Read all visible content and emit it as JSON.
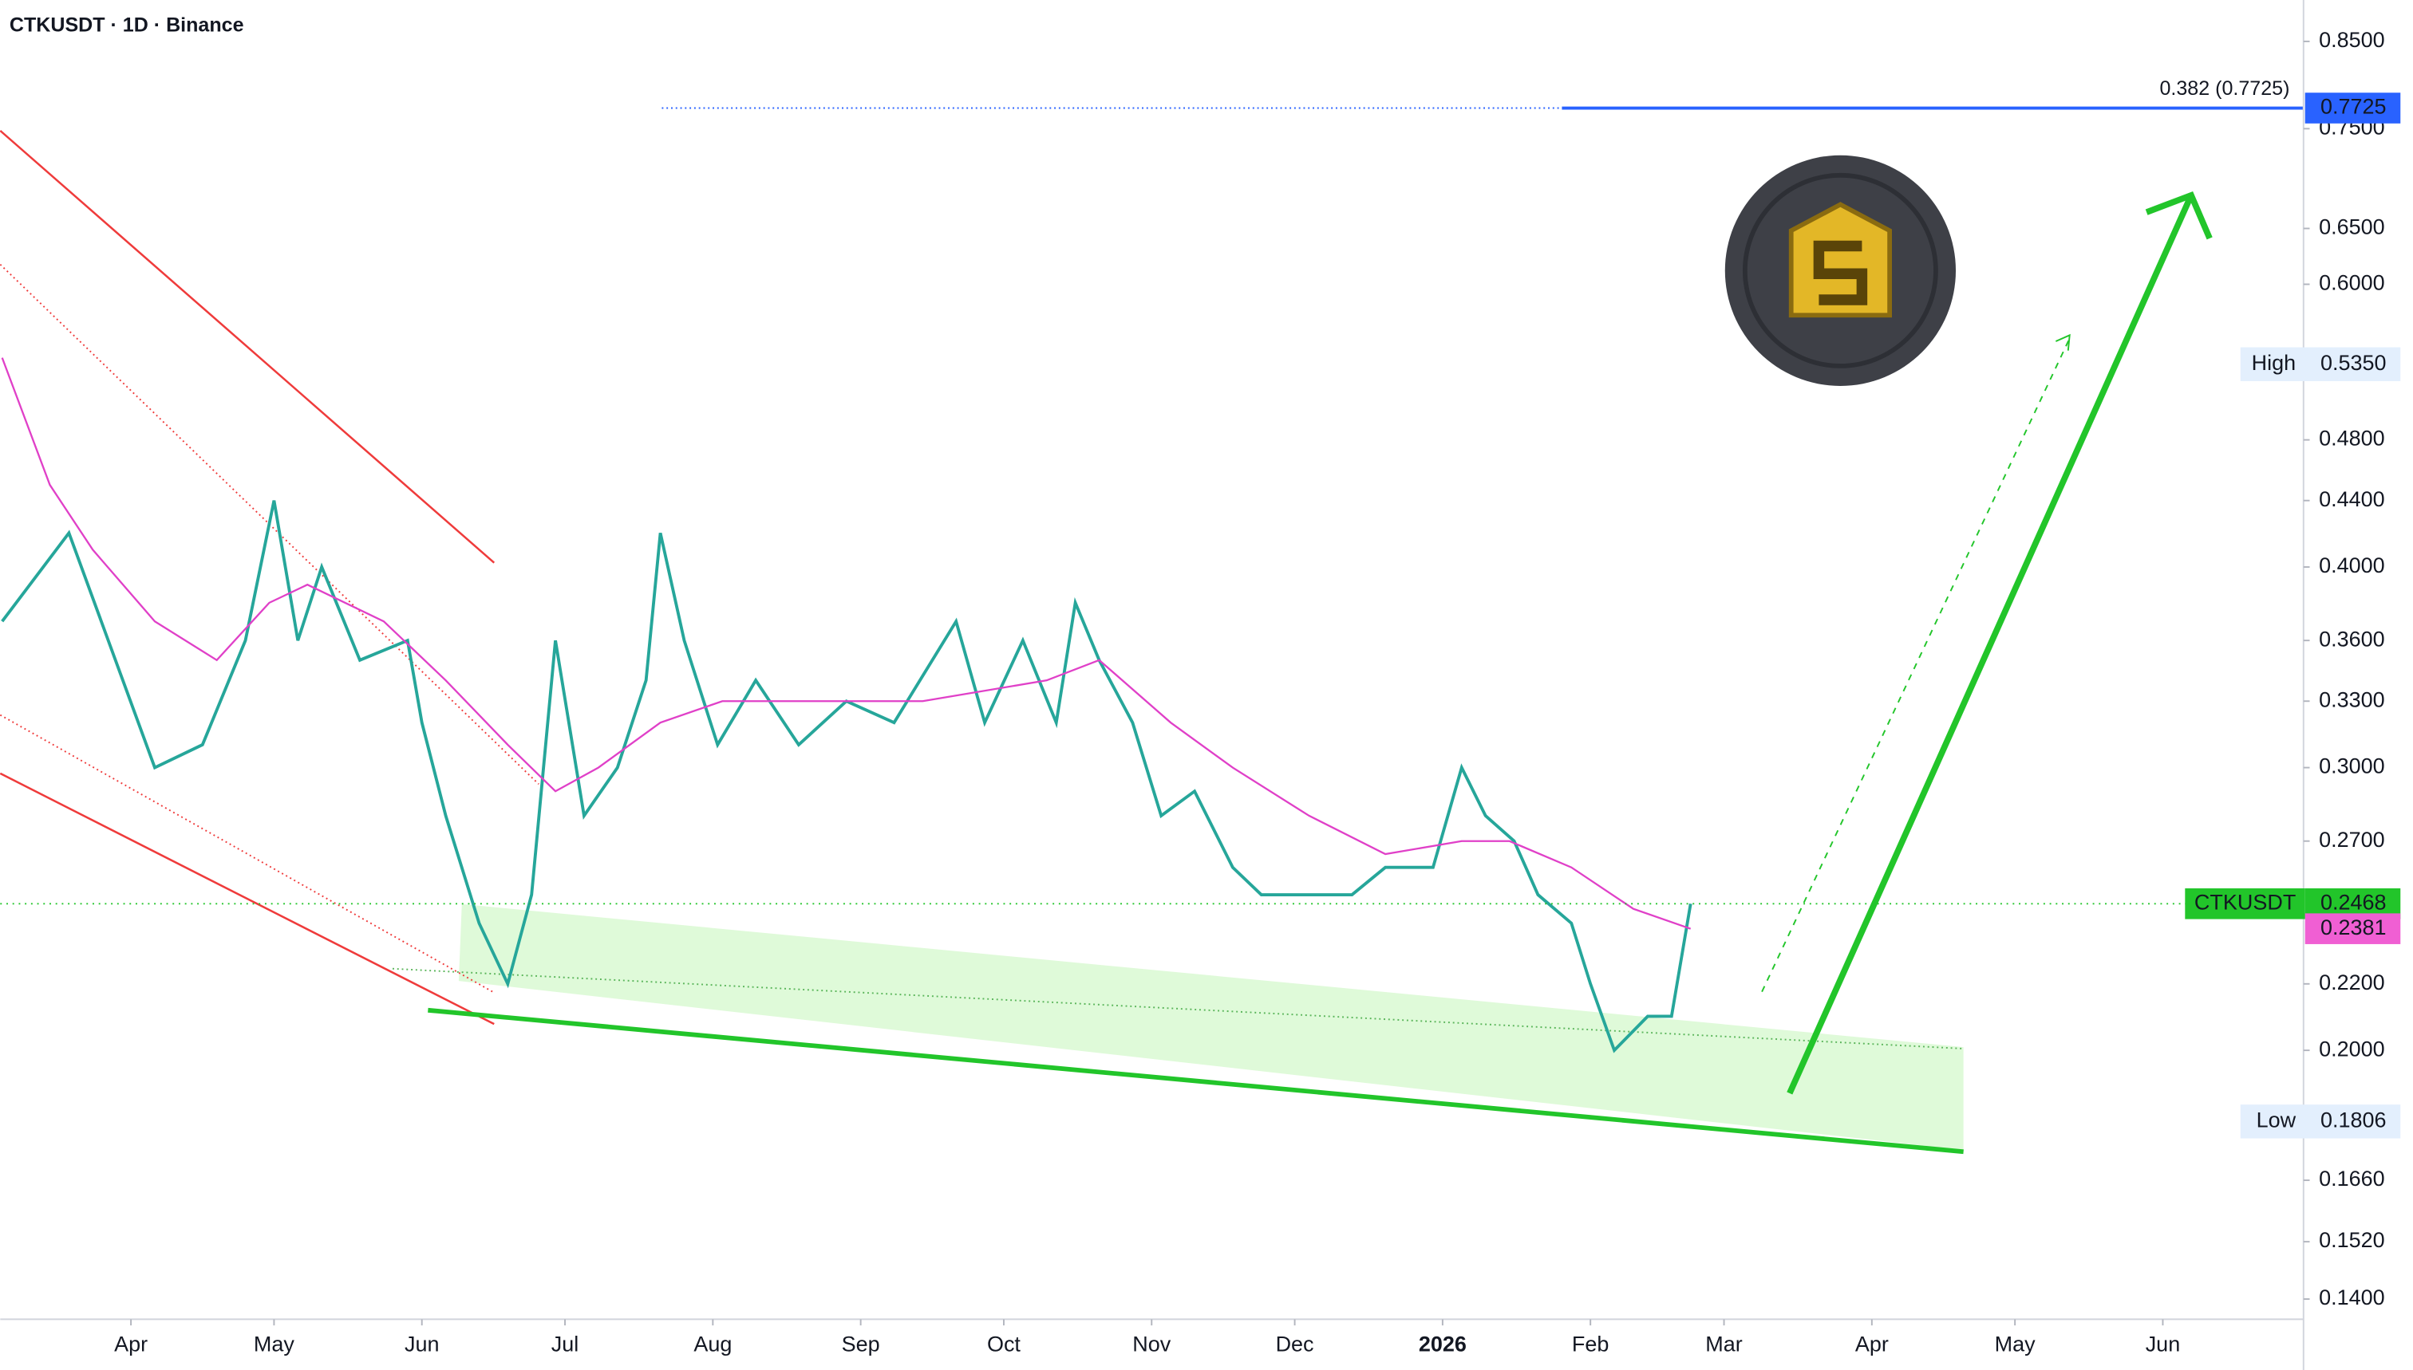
{
  "chart_data": {
    "type": "line",
    "title": "CTKUSDT · 1D · Binance",
    "log_scale": true,
    "xlim": [
      -27.4,
      455.5
    ],
    "xticks": [
      {
        "value": 0,
        "label": "Apr"
      },
      {
        "value": 30,
        "label": "May"
      },
      {
        "value": 61,
        "label": "Jun"
      },
      {
        "value": 91,
        "label": "Jul"
      },
      {
        "value": 122,
        "label": "Aug"
      },
      {
        "value": 153,
        "label": "Sep"
      },
      {
        "value": 183,
        "label": "Oct"
      },
      {
        "value": 214,
        "label": "Nov"
      },
      {
        "value": 244,
        "label": "Dec"
      },
      {
        "value": 275,
        "label": "2026"
      },
      {
        "value": 306,
        "label": "Feb"
      },
      {
        "value": 334,
        "label": "Mar"
      },
      {
        "value": 365,
        "label": "Apr"
      },
      {
        "value": 395,
        "label": "May"
      },
      {
        "value": 426,
        "label": "Jun"
      }
    ],
    "ylim": [
      0.136,
      0.902
    ],
    "yticks": [
      {
        "value": 0.85,
        "label": "0.8500"
      },
      {
        "value": 0.75,
        "label": "0.7500"
      },
      {
        "value": 0.65,
        "label": "0.6500"
      },
      {
        "value": 0.6,
        "label": "0.6000"
      },
      {
        "value": 0.48,
        "label": "0.4800"
      },
      {
        "value": 0.44,
        "label": "0.4400"
      },
      {
        "value": 0.4,
        "label": "0.4000"
      },
      {
        "value": 0.36,
        "label": "0.3600"
      },
      {
        "value": 0.33,
        "label": "0.3300"
      },
      {
        "value": 0.3,
        "label": "0.3000"
      },
      {
        "value": 0.27,
        "label": "0.2700"
      },
      {
        "value": 0.22,
        "label": "0.2200"
      },
      {
        "value": 0.2,
        "label": "0.2000"
      },
      {
        "value": 0.166,
        "label": "0.1660"
      },
      {
        "value": 0.152,
        "label": "0.1520"
      },
      {
        "value": 0.14,
        "label": "0.1400"
      }
    ],
    "series": [
      {
        "name": "CTKUSDT",
        "color": "#26a69a",
        "value": 0.2468,
        "x": [
          -27,
          -13,
          5,
          15,
          24,
          30,
          35,
          40,
          48,
          58,
          61,
          66,
          73,
          79,
          84,
          89,
          95,
          102,
          108,
          111,
          116,
          123,
          131,
          140,
          150,
          160,
          173,
          179,
          187,
          194,
          198,
          203,
          210,
          216,
          223,
          231,
          237,
          247,
          256,
          263,
          273,
          279,
          284,
          290,
          295,
          302,
          306,
          311,
          318,
          323,
          327
        ],
        "values": [
          0.37,
          0.42,
          0.3,
          0.31,
          0.36,
          0.44,
          0.36,
          0.4,
          0.35,
          0.36,
          0.32,
          0.28,
          0.24,
          0.22,
          0.25,
          0.36,
          0.28,
          0.3,
          0.34,
          0.42,
          0.36,
          0.31,
          0.34,
          0.31,
          0.33,
          0.32,
          0.37,
          0.32,
          0.36,
          0.32,
          0.38,
          0.35,
          0.32,
          0.28,
          0.29,
          0.26,
          0.25,
          0.25,
          0.25,
          0.26,
          0.26,
          0.3,
          0.28,
          0.27,
          0.25,
          0.24,
          0.22,
          0.2,
          0.21,
          0.21,
          0.2468
        ]
      },
      {
        "color": "#e040c8",
        "value": 0.2381,
        "x": [
          -27,
          -17,
          -8,
          5,
          18,
          29,
          37,
          53,
          66,
          79,
          89,
          98,
          111,
          124,
          140,
          166,
          192,
          203,
          218,
          231,
          247,
          263,
          279,
          289,
          302,
          315,
          327
        ],
        "values": [
          0.54,
          0.45,
          0.41,
          0.37,
          0.35,
          0.38,
          0.39,
          0.37,
          0.34,
          0.31,
          0.29,
          0.3,
          0.32,
          0.33,
          0.33,
          0.33,
          0.34,
          0.35,
          0.32,
          0.3,
          0.28,
          0.265,
          0.27,
          0.27,
          0.26,
          0.245,
          0.2381
        ]
      }
    ],
    "fib_label": "0.382 (0.7725)",
    "fib_level": 0.7725,
    "markers": [
      {
        "name": "High",
        "value": 0.535,
        "label": "0.5350"
      },
      {
        "name": "Low",
        "value": 0.1806,
        "label": "0.1806"
      }
    ]
  }
}
